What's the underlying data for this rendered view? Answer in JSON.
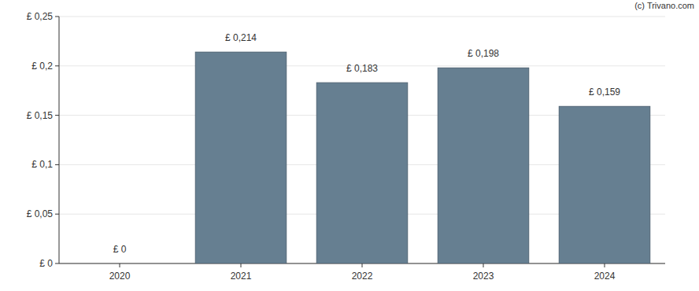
{
  "chart_data": {
    "type": "bar",
    "annotation": "(c) Trivano.com",
    "categories": [
      "2020",
      "2021",
      "2022",
      "2023",
      "2024"
    ],
    "values": [
      0,
      0.214,
      0.183,
      0.198,
      0.159
    ],
    "value_labels": [
      "£ 0",
      "£ 0,214",
      "£ 0,183",
      "£ 0,198",
      "£ 0,159"
    ],
    "color": "#667f91",
    "ylim": [
      0,
      0.25
    ],
    "yticks": [
      {
        "value": 0,
        "label": "£ 0"
      },
      {
        "value": 0.05,
        "label": "£ 0,05"
      },
      {
        "value": 0.1,
        "label": "£ 0,1"
      },
      {
        "value": 0.15,
        "label": "£ 0,15"
      },
      {
        "value": 0.2,
        "label": "£ 0,2"
      },
      {
        "value": 0.25,
        "label": "£ 0,25"
      }
    ],
    "grid": true,
    "data_labels": true
  }
}
